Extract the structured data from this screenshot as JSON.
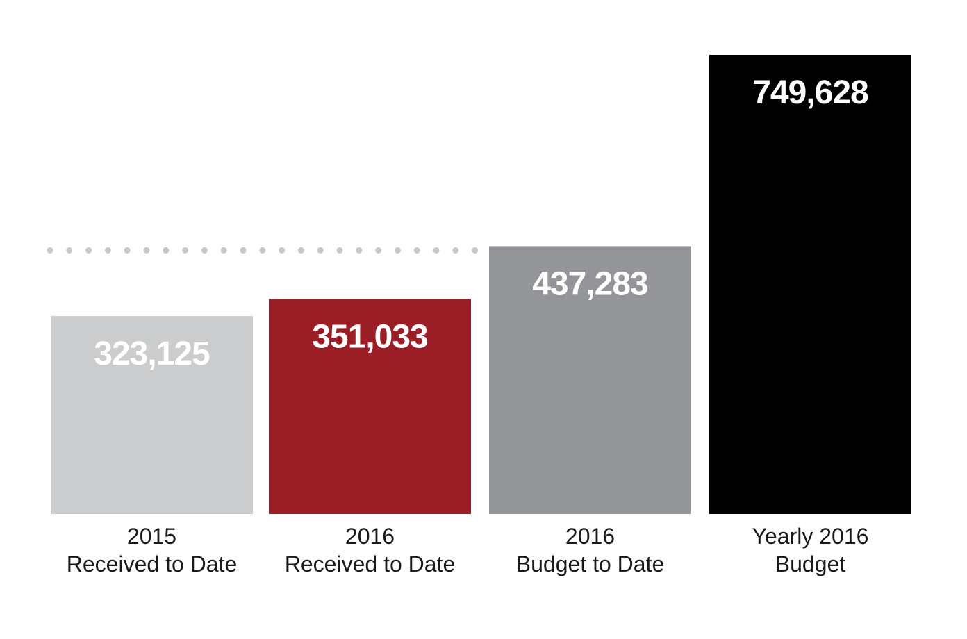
{
  "chart_data": {
    "type": "bar",
    "categories": [
      [
        "2015",
        "Received to Date"
      ],
      [
        "2016",
        "Received to Date"
      ],
      [
        "2016",
        "Budget to Date"
      ],
      [
        "Yearly 2016",
        "Budget"
      ]
    ],
    "values": [
      323125,
      351033,
      437283,
      749628
    ],
    "value_labels": [
      "323,125",
      "351,033",
      "437,283",
      "749,628"
    ],
    "colors": [
      "#cbcccd",
      "#9b1e26",
      "#939598",
      "#000000"
    ],
    "reference_line": {
      "value": 437283,
      "style": "dotted",
      "color": "#c8c8c8"
    },
    "ylim": [
      0,
      749628
    ],
    "grid": false,
    "legend": false
  }
}
